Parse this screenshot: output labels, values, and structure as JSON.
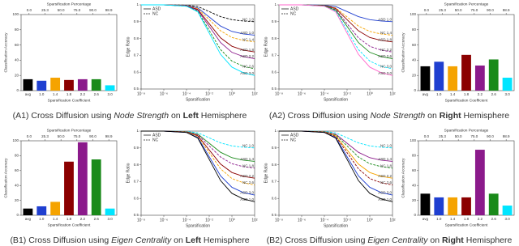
{
  "captions": [
    [
      {
        "text": "(A1) Cross Diffusion using ",
        "style": "normal"
      },
      {
        "text": "Node Strength",
        "style": "italic"
      },
      {
        "text": " on ",
        "style": "normal"
      },
      {
        "text": "Left",
        "style": "bold"
      },
      {
        "text": " Hemisphere",
        "style": "normal"
      }
    ],
    [
      {
        "text": "(A2) Cross Diffusion using ",
        "style": "normal"
      },
      {
        "text": "Node Strength",
        "style": "italic"
      },
      {
        "text": " on ",
        "style": "normal"
      },
      {
        "text": "Right",
        "style": "bold"
      },
      {
        "text": " Hemisphere",
        "style": "normal"
      }
    ],
    [
      {
        "text": "(B1) Cross Diffusion using ",
        "style": "normal"
      },
      {
        "text": "Eigen Centrality",
        "style": "italic"
      },
      {
        "text": " on ",
        "style": "normal"
      },
      {
        "text": "Left",
        "style": "bold"
      },
      {
        "text": " Hemisphere",
        "style": "normal"
      }
    ],
    [
      {
        "text": "(B2) Cross Diffusion using ",
        "style": "normal"
      },
      {
        "text": "Eigen Centrality",
        "style": "italic"
      },
      {
        "text": " on ",
        "style": "normal"
      },
      {
        "text": "Right",
        "style": "bold"
      },
      {
        "text": " Hemisphere",
        "style": "normal"
      }
    ]
  ],
  "chart_data": [
    {
      "type": "bar",
      "xlabel": "Sparsification Coefficient",
      "ylabel": "Classification Accuracy",
      "top_label": "Sparsification Percentage",
      "top_ticks": [
        "0.0",
        "25.3",
        "50.0",
        "75.0",
        "90.0",
        "98.9"
      ],
      "categories": [
        "avg",
        "1.0",
        "1.4",
        "1.8",
        "2.2",
        "2.6",
        "3.0"
      ],
      "values": [
        15,
        13,
        17,
        14,
        15,
        15,
        7
      ],
      "colors": [
        "#000000",
        "#1f3fd0",
        "#f5a300",
        "#8b0000",
        "#8b1a8b",
        "#1a8a1a",
        "#00e5ff"
      ],
      "ylim": [
        0,
        100
      ],
      "yticks": [
        0,
        20,
        40,
        60,
        80,
        100
      ]
    },
    {
      "type": "line",
      "xlabel": "Sparsification",
      "ylabel": "Edge Ratio",
      "log_x": true,
      "legend": [
        {
          "name": "ASD",
          "dash": false
        },
        {
          "name": "NC",
          "dash": true
        }
      ],
      "x": [
        1e-08,
        1e-06,
        0.0001,
        0.001,
        0.01,
        0.1,
        1,
        10,
        100
      ],
      "xlim": [
        1e-08,
        100
      ],
      "xticks": [
        {
          "value": 1e-08,
          "label": "10⁻⁸"
        },
        {
          "value": 1e-06,
          "label": "10⁻⁶"
        },
        {
          "value": 0.0001,
          "label": "10⁻⁴"
        },
        {
          "value": 0.01,
          "label": "10⁻²"
        },
        {
          "value": 1,
          "label": "10⁰"
        },
        {
          "value": 100,
          "label": "10²"
        }
      ],
      "ylim": [
        0.5,
        1.0
      ],
      "yticks": [
        0.5,
        0.6,
        0.7,
        0.8,
        0.9,
        1.0
      ],
      "series": [
        {
          "name": "NC 1.0",
          "color": "#000000",
          "dash": true,
          "values": [
            1,
            1,
            0.998,
            0.99,
            0.96,
            0.93,
            0.912,
            0.904,
            0.9
          ]
        },
        {
          "name": "ASD 1.0",
          "color": "#1f3fd0",
          "dash": false,
          "values": [
            1,
            1,
            0.996,
            0.982,
            0.928,
            0.874,
            0.842,
            0.827,
            0.82
          ]
        },
        {
          "name": "NC 1.4",
          "color": "#f5a300",
          "dash": true,
          "values": [
            1,
            1,
            0.996,
            0.978,
            0.912,
            0.846,
            0.806,
            0.789,
            0.78
          ]
        },
        {
          "name": "ASD 1.8",
          "color": "#8b0000",
          "dash": false,
          "values": [
            1,
            1,
            0.994,
            0.972,
            0.888,
            0.804,
            0.754,
            0.731,
            0.72
          ]
        },
        {
          "name": "ASD 2.2",
          "color": "#8b1a8b",
          "dash": false,
          "values": [
            1,
            1,
            0.994,
            0.968,
            0.872,
            0.776,
            0.718,
            0.693,
            0.68
          ]
        },
        {
          "name": "NC 2.6",
          "color": "#1a8a1a",
          "dash": true,
          "values": [
            1,
            1,
            0.992,
            0.962,
            0.848,
            0.734,
            0.666,
            0.635,
            0.62
          ]
        },
        {
          "name": "ASD 3.0",
          "color": "#00e5ff",
          "dash": false,
          "values": [
            1,
            1,
            0.992,
            0.958,
            0.832,
            0.706,
            0.63,
            0.597,
            0.58
          ]
        }
      ]
    },
    {
      "type": "line",
      "xlabel": "Sparsification",
      "ylabel": "Edge Ratio",
      "log_x": true,
      "legend": [
        {
          "name": "ASD",
          "dash": false
        },
        {
          "name": "NC",
          "dash": true
        }
      ],
      "x": [
        1e-08,
        1e-06,
        0.0001,
        0.001,
        0.01,
        0.1,
        1,
        10,
        100
      ],
      "xlim": [
        1e-08,
        100
      ],
      "xticks": [
        {
          "value": 1e-08,
          "label": "10⁻⁸"
        },
        {
          "value": 1e-06,
          "label": "10⁻⁶"
        },
        {
          "value": 0.0001,
          "label": "10⁻⁴"
        },
        {
          "value": 0.01,
          "label": "10⁻²"
        },
        {
          "value": 1,
          "label": "10⁰"
        },
        {
          "value": 100,
          "label": "10²"
        }
      ],
      "ylim": [
        0.5,
        1.0
      ],
      "yticks": [
        0.5,
        0.6,
        0.7,
        0.8,
        0.9,
        1.0
      ],
      "series": [
        {
          "name": "ASD 1.0",
          "color": "#1f3fd0",
          "dash": false,
          "values": [
            1,
            1,
            0.998,
            0.99,
            0.96,
            0.93,
            0.912,
            0.904,
            0.9
          ]
        },
        {
          "name": "NC 1.4",
          "color": "#f5a300",
          "dash": true,
          "values": [
            1,
            1,
            0.996,
            0.982,
            0.928,
            0.874,
            0.842,
            0.827,
            0.82
          ]
        },
        {
          "name": "ASD 1.8",
          "color": "#8b0000",
          "dash": false,
          "values": [
            1,
            1,
            0.996,
            0.978,
            0.912,
            0.846,
            0.806,
            0.789,
            0.78
          ]
        },
        {
          "name": "NC 2.2",
          "color": "#8b1a8b",
          "dash": true,
          "values": [
            1,
            1,
            0.994,
            0.972,
            0.888,
            0.804,
            0.754,
            0.731,
            0.72
          ]
        },
        {
          "name": "ASD 2.6",
          "color": "#1a8a1a",
          "dash": false,
          "values": [
            1,
            1,
            0.994,
            0.968,
            0.872,
            0.776,
            0.718,
            0.693,
            0.68
          ]
        },
        {
          "name": "NC 3.0",
          "color": "#00e5ff",
          "dash": true,
          "values": [
            1,
            1,
            0.992,
            0.962,
            0.848,
            0.734,
            0.666,
            0.635,
            0.62
          ]
        },
        {
          "name": "ASD 3.0",
          "color": "#ff66cc",
          "dash": false,
          "values": [
            1,
            1,
            0.992,
            0.958,
            0.832,
            0.706,
            0.63,
            0.597,
            0.58
          ]
        }
      ]
    },
    {
      "type": "bar",
      "xlabel": "Sparsification Coefficient",
      "ylabel": "Classification Accuracy",
      "top_label": "Sparsification Percentage",
      "top_ticks": [
        "0.0",
        "25.3",
        "50.0",
        "75.0",
        "90.0",
        "98.9"
      ],
      "categories": [
        "avg",
        "1.0",
        "1.4",
        "1.8",
        "2.2",
        "2.6",
        "3.0"
      ],
      "values": [
        32,
        38,
        32,
        47,
        33,
        41,
        17
      ],
      "colors": [
        "#000000",
        "#1f3fd0",
        "#f5a300",
        "#8b0000",
        "#8b1a8b",
        "#1a8a1a",
        "#00e5ff"
      ],
      "ylim": [
        0,
        100
      ],
      "yticks": [
        0,
        20,
        40,
        60,
        80,
        100
      ]
    },
    {
      "type": "bar",
      "xlabel": "Sparsification Coefficient",
      "ylabel": "Classification Accuracy",
      "top_label": "Sparsification Percentage",
      "top_ticks": [
        "0.0",
        "25.3",
        "50.0",
        "75.0",
        "90.0",
        "98.9"
      ],
      "categories": [
        "avg",
        "1.0",
        "1.4",
        "1.8",
        "2.2",
        "2.6",
        "3.0"
      ],
      "values": [
        9,
        12,
        18,
        72,
        98,
        75,
        9
      ],
      "colors": [
        "#000000",
        "#1f3fd0",
        "#f5a300",
        "#8b0000",
        "#8b1a8b",
        "#1a8a1a",
        "#00e5ff"
      ],
      "ylim": [
        0,
        100
      ],
      "yticks": [
        0,
        20,
        40,
        60,
        80,
        100
      ]
    },
    {
      "type": "line",
      "xlabel": "Sparsification",
      "ylabel": "Edge Ratio",
      "log_x": true,
      "legend": [
        {
          "name": "ASD",
          "dash": false
        },
        {
          "name": "NC",
          "dash": true
        }
      ],
      "x": [
        1e-08,
        1e-06,
        0.0001,
        0.001,
        0.01,
        0.1,
        1,
        10,
        100
      ],
      "xlim": [
        1e-08,
        100
      ],
      "xticks": [
        {
          "value": 1e-08,
          "label": "10⁻⁸"
        },
        {
          "value": 1e-06,
          "label": "10⁻⁶"
        },
        {
          "value": 0.0001,
          "label": "10⁻⁴"
        },
        {
          "value": 0.01,
          "label": "10⁻²"
        },
        {
          "value": 1,
          "label": "10⁰"
        },
        {
          "value": 100,
          "label": "10²"
        }
      ],
      "ylim": [
        0.5,
        1.0
      ],
      "yticks": [
        0.5,
        0.6,
        0.7,
        0.8,
        0.9,
        1.0
      ],
      "series": [
        {
          "name": "NC 1.0",
          "color": "#00e5ff",
          "dash": true,
          "values": [
            1,
            1,
            0.998,
            0.99,
            0.96,
            0.93,
            0.912,
            0.904,
            0.9
          ]
        },
        {
          "name": "ASD 1.4",
          "color": "#1a8a1a",
          "dash": false,
          "values": [
            1,
            1,
            0.996,
            0.982,
            0.928,
            0.874,
            0.842,
            0.827,
            0.82
          ]
        },
        {
          "name": "NC 1.8",
          "color": "#8b1a8b",
          "dash": true,
          "values": [
            1,
            1,
            0.996,
            0.978,
            0.912,
            0.846,
            0.806,
            0.789,
            0.78
          ]
        },
        {
          "name": "ASD 2.2",
          "color": "#8b0000",
          "dash": false,
          "values": [
            1,
            1,
            0.994,
            0.972,
            0.888,
            0.804,
            0.754,
            0.731,
            0.72
          ]
        },
        {
          "name": "NC 2.6",
          "color": "#f5a300",
          "dash": true,
          "values": [
            1,
            1,
            0.994,
            0.968,
            0.872,
            0.776,
            0.718,
            0.693,
            0.68
          ]
        },
        {
          "name": "ASD 3.0",
          "color": "#1f3fd0",
          "dash": false,
          "values": [
            1,
            1,
            0.992,
            0.962,
            0.848,
            0.734,
            0.666,
            0.635,
            0.62
          ]
        },
        {
          "name": "ASD 1.0",
          "color": "#000000",
          "dash": false,
          "values": [
            1,
            1,
            0.992,
            0.958,
            0.832,
            0.706,
            0.63,
            0.597,
            0.58
          ]
        }
      ]
    },
    {
      "type": "line",
      "xlabel": "Sparsification",
      "ylabel": "Edge Ratio",
      "log_x": true,
      "legend": [
        {
          "name": "ASD",
          "dash": false
        },
        {
          "name": "NC",
          "dash": true
        }
      ],
      "x": [
        1e-08,
        1e-06,
        0.0001,
        0.001,
        0.01,
        0.1,
        1,
        10,
        100
      ],
      "xlim": [
        1e-08,
        100
      ],
      "xticks": [
        {
          "value": 1e-08,
          "label": "10⁻⁸"
        },
        {
          "value": 1e-06,
          "label": "10⁻⁶"
        },
        {
          "value": 0.0001,
          "label": "10⁻⁴"
        },
        {
          "value": 0.01,
          "label": "10⁻²"
        },
        {
          "value": 1,
          "label": "10⁰"
        },
        {
          "value": 100,
          "label": "10²"
        }
      ],
      "ylim": [
        0.5,
        1.0
      ],
      "yticks": [
        0.5,
        0.6,
        0.7,
        0.8,
        0.9,
        1.0
      ],
      "series": [
        {
          "name": "NC 1.0",
          "color": "#00e5ff",
          "dash": true,
          "values": [
            1,
            1,
            0.998,
            0.99,
            0.96,
            0.93,
            0.912,
            0.904,
            0.9
          ]
        },
        {
          "name": "ASD 1.4",
          "color": "#8b1a8b",
          "dash": false,
          "values": [
            1,
            1,
            0.996,
            0.982,
            0.928,
            0.874,
            0.842,
            0.827,
            0.82
          ]
        },
        {
          "name": "NC 1.8",
          "color": "#1a8a1a",
          "dash": true,
          "values": [
            1,
            1,
            0.996,
            0.978,
            0.912,
            0.846,
            0.806,
            0.789,
            0.78
          ]
        },
        {
          "name": "ASD 2.2",
          "color": "#f5a300",
          "dash": false,
          "values": [
            1,
            1,
            0.994,
            0.972,
            0.888,
            0.804,
            0.754,
            0.731,
            0.72
          ]
        },
        {
          "name": "NC 2.6",
          "color": "#8b0000",
          "dash": true,
          "values": [
            1,
            1,
            0.994,
            0.968,
            0.872,
            0.776,
            0.718,
            0.693,
            0.68
          ]
        },
        {
          "name": "ASD 3.0",
          "color": "#1f3fd0",
          "dash": false,
          "values": [
            1,
            1,
            0.992,
            0.962,
            0.848,
            0.734,
            0.666,
            0.635,
            0.62
          ]
        },
        {
          "name": "ASD 1.0",
          "color": "#000000",
          "dash": false,
          "values": [
            1,
            1,
            0.992,
            0.958,
            0.832,
            0.706,
            0.63,
            0.597,
            0.58
          ]
        }
      ]
    },
    {
      "type": "bar",
      "xlabel": "Sparsification Coefficient",
      "ylabel": "Classification Accuracy",
      "top_label": "Sparsification Percentage",
      "top_ticks": [
        "0.0",
        "25.3",
        "50.0",
        "75.0",
        "90.0",
        "98.9"
      ],
      "categories": [
        "avg",
        "1.0",
        "1.4",
        "1.8",
        "2.2",
        "2.6",
        "3.0"
      ],
      "values": [
        29,
        24,
        24,
        24,
        88,
        29,
        13
      ],
      "colors": [
        "#000000",
        "#1f3fd0",
        "#f5a300",
        "#8b0000",
        "#8b1a8b",
        "#1a8a1a",
        "#00e5ff"
      ],
      "ylim": [
        0,
        100
      ],
      "yticks": [
        0,
        20,
        40,
        60,
        80,
        100
      ]
    }
  ]
}
